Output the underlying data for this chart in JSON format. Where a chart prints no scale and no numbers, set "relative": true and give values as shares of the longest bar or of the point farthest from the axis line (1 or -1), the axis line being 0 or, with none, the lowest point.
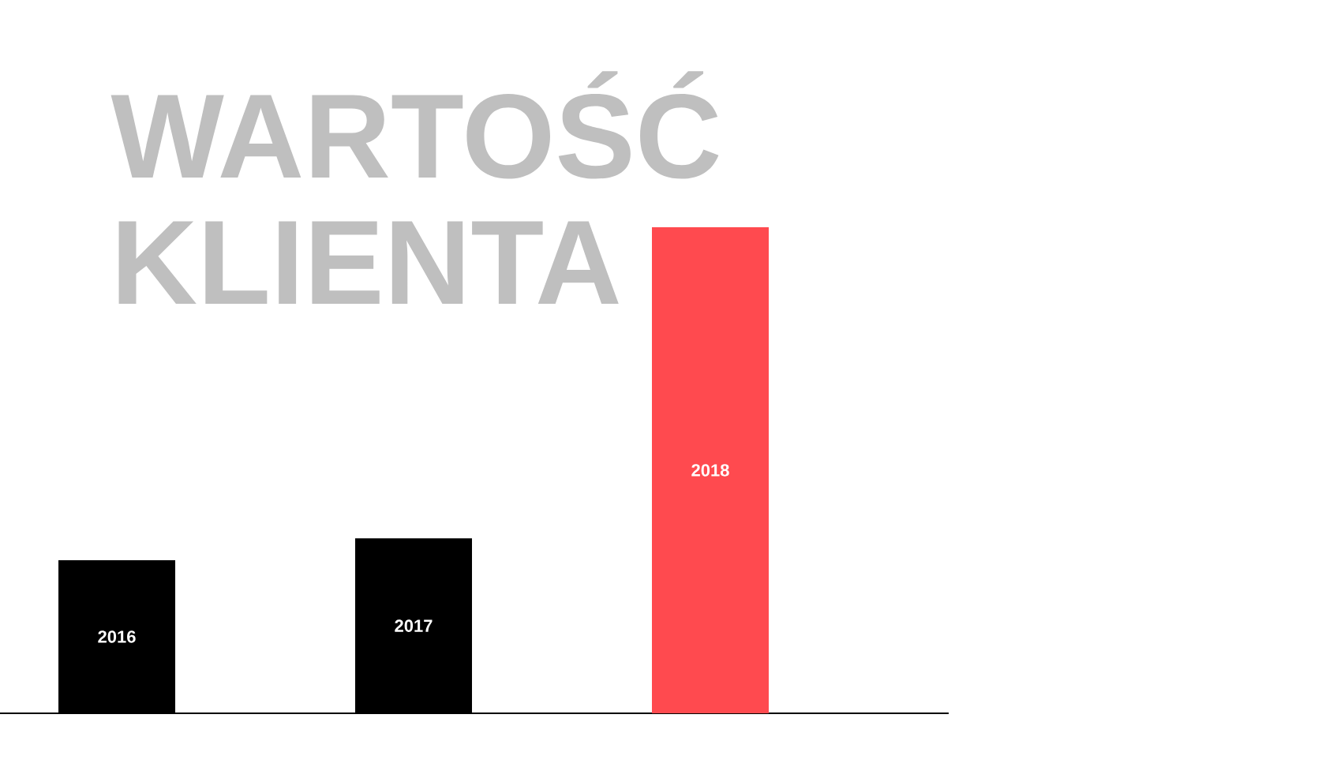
{
  "chart_data": {
    "type": "bar",
    "title": "WARTOŚĆ KLIENTA",
    "categories": [
      "2016",
      "2017",
      "2018"
    ],
    "values": [
      0.315,
      0.36,
      1
    ],
    "colors": [
      "#000000",
      "#000000",
      "#ff4a4f"
    ],
    "relative": true
  }
}
